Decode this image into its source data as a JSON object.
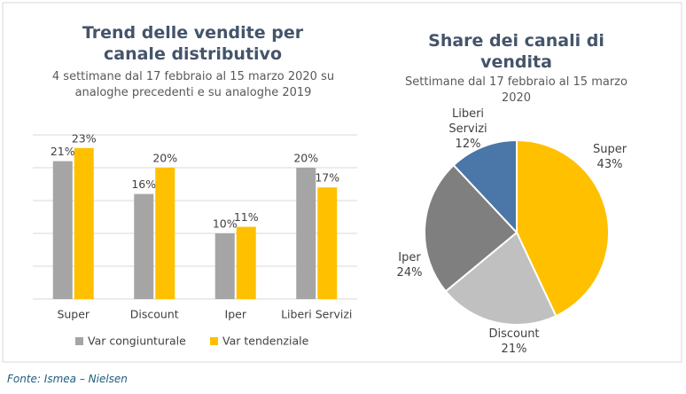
{
  "chart_data": [
    {
      "type": "bar",
      "title": "Trend delle vendite per canale distributivo",
      "subtitle": "4 settimane dal 17 febbraio al 15 marzo 2020 su analoghe precedenti e su analoghe 2019",
      "categories": [
        "Super",
        "Discount",
        "Iper",
        "Liberi Servizi"
      ],
      "series": [
        {
          "name": "Var congiunturale",
          "color": "#a5a5a5",
          "values": [
            21,
            16,
            10,
            20
          ],
          "value_labels": [
            "21%",
            "16%",
            "10%",
            "20%"
          ]
        },
        {
          "name": "Var tendenziale",
          "color": "#ffc000",
          "values": [
            23,
            20,
            11,
            17
          ],
          "value_labels": [
            "23%",
            "20%",
            "11%",
            "17%"
          ]
        }
      ],
      "ylim": [
        0,
        25
      ],
      "yticks": [
        0,
        5,
        10,
        15,
        20,
        25
      ],
      "grid": true,
      "legend": "bottom"
    },
    {
      "type": "pie",
      "title": "Share dei canali di vendita",
      "subtitle": "Settimane dal 17 febbraio al 15 marzo 2020",
      "categories": [
        "Super",
        "Discount",
        "Iper",
        "Liberi Servizi"
      ],
      "values": [
        43,
        21,
        24,
        12
      ],
      "value_labels": [
        "43%",
        "21%",
        "24%",
        "12%"
      ],
      "colors": [
        "#ffc000",
        "#c0c0c0",
        "#7f7f7f",
        "#4a76a8"
      ]
    }
  ],
  "source": "Fonte: Ismea – Nielsen"
}
